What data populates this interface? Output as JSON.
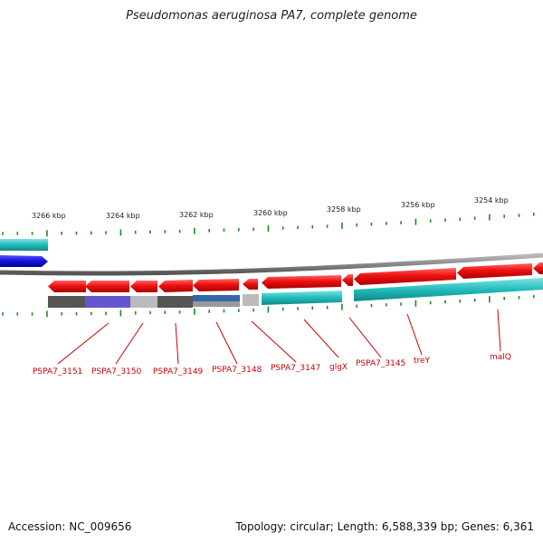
{
  "title": "Pseudomonas aeruginosa PA7, complete genome",
  "footer": {
    "accession": "Accession: NC_009656",
    "topology": "Topology: circular; Length: 6,588,339 bp; Genes: 6,361"
  },
  "colors": {
    "cds": "#ee1111",
    "rna": "#22bbbb",
    "blue_feature": "#1111dd",
    "backbone": "#888888",
    "tick": "#228822",
    "label": "#cc0000"
  },
  "kbp_marks": [
    "3266 kbp",
    "3264 kbp",
    "3262 kbp",
    "3260 kbp",
    "3258 kbp",
    "3256 kbp",
    "3254 kbp"
  ],
  "gene_labels": [
    "PSPA7_3151",
    "PSPA7_3150",
    "PSPA7_3149",
    "PSPA7_3148",
    "PSPA7_3147",
    "glgX",
    "PSPA7_3145",
    "treY",
    "malQ"
  ]
}
